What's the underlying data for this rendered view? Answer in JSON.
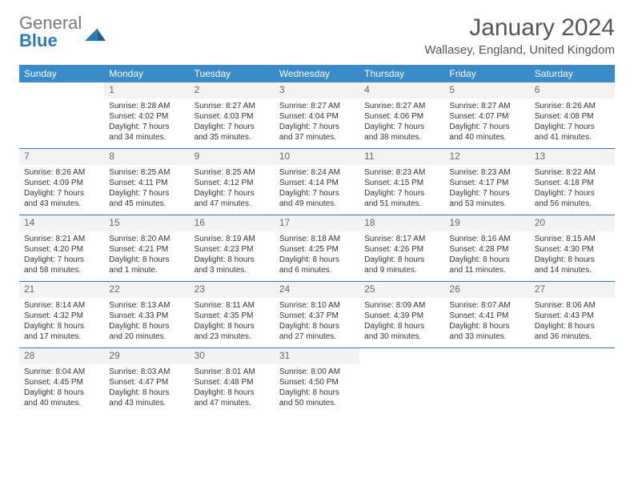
{
  "logo": {
    "part1": "General",
    "part2": "Blue"
  },
  "title": "January 2024",
  "location": "Wallasey, England, United Kingdom",
  "colors": {
    "header_bg": "#3a8bc9",
    "rule": "#2a7ab8",
    "daynum_bg": "#f3f3f3",
    "logo_gray": "#787878",
    "logo_blue": "#2a7ab8"
  },
  "dayNames": [
    "Sunday",
    "Monday",
    "Tuesday",
    "Wednesday",
    "Thursday",
    "Friday",
    "Saturday"
  ],
  "weeks": [
    [
      {
        "n": "",
        "sr": "",
        "ss": "",
        "dl1": "",
        "dl2": ""
      },
      {
        "n": "1",
        "sr": "Sunrise: 8:28 AM",
        "ss": "Sunset: 4:02 PM",
        "dl1": "Daylight: 7 hours",
        "dl2": "and 34 minutes."
      },
      {
        "n": "2",
        "sr": "Sunrise: 8:27 AM",
        "ss": "Sunset: 4:03 PM",
        "dl1": "Daylight: 7 hours",
        "dl2": "and 35 minutes."
      },
      {
        "n": "3",
        "sr": "Sunrise: 8:27 AM",
        "ss": "Sunset: 4:04 PM",
        "dl1": "Daylight: 7 hours",
        "dl2": "and 37 minutes."
      },
      {
        "n": "4",
        "sr": "Sunrise: 8:27 AM",
        "ss": "Sunset: 4:06 PM",
        "dl1": "Daylight: 7 hours",
        "dl2": "and 38 minutes."
      },
      {
        "n": "5",
        "sr": "Sunrise: 8:27 AM",
        "ss": "Sunset: 4:07 PM",
        "dl1": "Daylight: 7 hours",
        "dl2": "and 40 minutes."
      },
      {
        "n": "6",
        "sr": "Sunrise: 8:26 AM",
        "ss": "Sunset: 4:08 PM",
        "dl1": "Daylight: 7 hours",
        "dl2": "and 41 minutes."
      }
    ],
    [
      {
        "n": "7",
        "sr": "Sunrise: 8:26 AM",
        "ss": "Sunset: 4:09 PM",
        "dl1": "Daylight: 7 hours",
        "dl2": "and 43 minutes."
      },
      {
        "n": "8",
        "sr": "Sunrise: 8:25 AM",
        "ss": "Sunset: 4:11 PM",
        "dl1": "Daylight: 7 hours",
        "dl2": "and 45 minutes."
      },
      {
        "n": "9",
        "sr": "Sunrise: 8:25 AM",
        "ss": "Sunset: 4:12 PM",
        "dl1": "Daylight: 7 hours",
        "dl2": "and 47 minutes."
      },
      {
        "n": "10",
        "sr": "Sunrise: 8:24 AM",
        "ss": "Sunset: 4:14 PM",
        "dl1": "Daylight: 7 hours",
        "dl2": "and 49 minutes."
      },
      {
        "n": "11",
        "sr": "Sunrise: 8:23 AM",
        "ss": "Sunset: 4:15 PM",
        "dl1": "Daylight: 7 hours",
        "dl2": "and 51 minutes."
      },
      {
        "n": "12",
        "sr": "Sunrise: 8:23 AM",
        "ss": "Sunset: 4:17 PM",
        "dl1": "Daylight: 7 hours",
        "dl2": "and 53 minutes."
      },
      {
        "n": "13",
        "sr": "Sunrise: 8:22 AM",
        "ss": "Sunset: 4:18 PM",
        "dl1": "Daylight: 7 hours",
        "dl2": "and 56 minutes."
      }
    ],
    [
      {
        "n": "14",
        "sr": "Sunrise: 8:21 AM",
        "ss": "Sunset: 4:20 PM",
        "dl1": "Daylight: 7 hours",
        "dl2": "and 58 minutes."
      },
      {
        "n": "15",
        "sr": "Sunrise: 8:20 AM",
        "ss": "Sunset: 4:21 PM",
        "dl1": "Daylight: 8 hours",
        "dl2": "and 1 minute."
      },
      {
        "n": "16",
        "sr": "Sunrise: 8:19 AM",
        "ss": "Sunset: 4:23 PM",
        "dl1": "Daylight: 8 hours",
        "dl2": "and 3 minutes."
      },
      {
        "n": "17",
        "sr": "Sunrise: 8:18 AM",
        "ss": "Sunset: 4:25 PM",
        "dl1": "Daylight: 8 hours",
        "dl2": "and 6 minutes."
      },
      {
        "n": "18",
        "sr": "Sunrise: 8:17 AM",
        "ss": "Sunset: 4:26 PM",
        "dl1": "Daylight: 8 hours",
        "dl2": "and 9 minutes."
      },
      {
        "n": "19",
        "sr": "Sunrise: 8:16 AM",
        "ss": "Sunset: 4:28 PM",
        "dl1": "Daylight: 8 hours",
        "dl2": "and 11 minutes."
      },
      {
        "n": "20",
        "sr": "Sunrise: 8:15 AM",
        "ss": "Sunset: 4:30 PM",
        "dl1": "Daylight: 8 hours",
        "dl2": "and 14 minutes."
      }
    ],
    [
      {
        "n": "21",
        "sr": "Sunrise: 8:14 AM",
        "ss": "Sunset: 4:32 PM",
        "dl1": "Daylight: 8 hours",
        "dl2": "and 17 minutes."
      },
      {
        "n": "22",
        "sr": "Sunrise: 8:13 AM",
        "ss": "Sunset: 4:33 PM",
        "dl1": "Daylight: 8 hours",
        "dl2": "and 20 minutes."
      },
      {
        "n": "23",
        "sr": "Sunrise: 8:11 AM",
        "ss": "Sunset: 4:35 PM",
        "dl1": "Daylight: 8 hours",
        "dl2": "and 23 minutes."
      },
      {
        "n": "24",
        "sr": "Sunrise: 8:10 AM",
        "ss": "Sunset: 4:37 PM",
        "dl1": "Daylight: 8 hours",
        "dl2": "and 27 minutes."
      },
      {
        "n": "25",
        "sr": "Sunrise: 8:09 AM",
        "ss": "Sunset: 4:39 PM",
        "dl1": "Daylight: 8 hours",
        "dl2": "and 30 minutes."
      },
      {
        "n": "26",
        "sr": "Sunrise: 8:07 AM",
        "ss": "Sunset: 4:41 PM",
        "dl1": "Daylight: 8 hours",
        "dl2": "and 33 minutes."
      },
      {
        "n": "27",
        "sr": "Sunrise: 8:06 AM",
        "ss": "Sunset: 4:43 PM",
        "dl1": "Daylight: 8 hours",
        "dl2": "and 36 minutes."
      }
    ],
    [
      {
        "n": "28",
        "sr": "Sunrise: 8:04 AM",
        "ss": "Sunset: 4:45 PM",
        "dl1": "Daylight: 8 hours",
        "dl2": "and 40 minutes."
      },
      {
        "n": "29",
        "sr": "Sunrise: 8:03 AM",
        "ss": "Sunset: 4:47 PM",
        "dl1": "Daylight: 8 hours",
        "dl2": "and 43 minutes."
      },
      {
        "n": "30",
        "sr": "Sunrise: 8:01 AM",
        "ss": "Sunset: 4:48 PM",
        "dl1": "Daylight: 8 hours",
        "dl2": "and 47 minutes."
      },
      {
        "n": "31",
        "sr": "Sunrise: 8:00 AM",
        "ss": "Sunset: 4:50 PM",
        "dl1": "Daylight: 8 hours",
        "dl2": "and 50 minutes."
      },
      {
        "n": "",
        "sr": "",
        "ss": "",
        "dl1": "",
        "dl2": ""
      },
      {
        "n": "",
        "sr": "",
        "ss": "",
        "dl1": "",
        "dl2": ""
      },
      {
        "n": "",
        "sr": "",
        "ss": "",
        "dl1": "",
        "dl2": ""
      }
    ]
  ]
}
